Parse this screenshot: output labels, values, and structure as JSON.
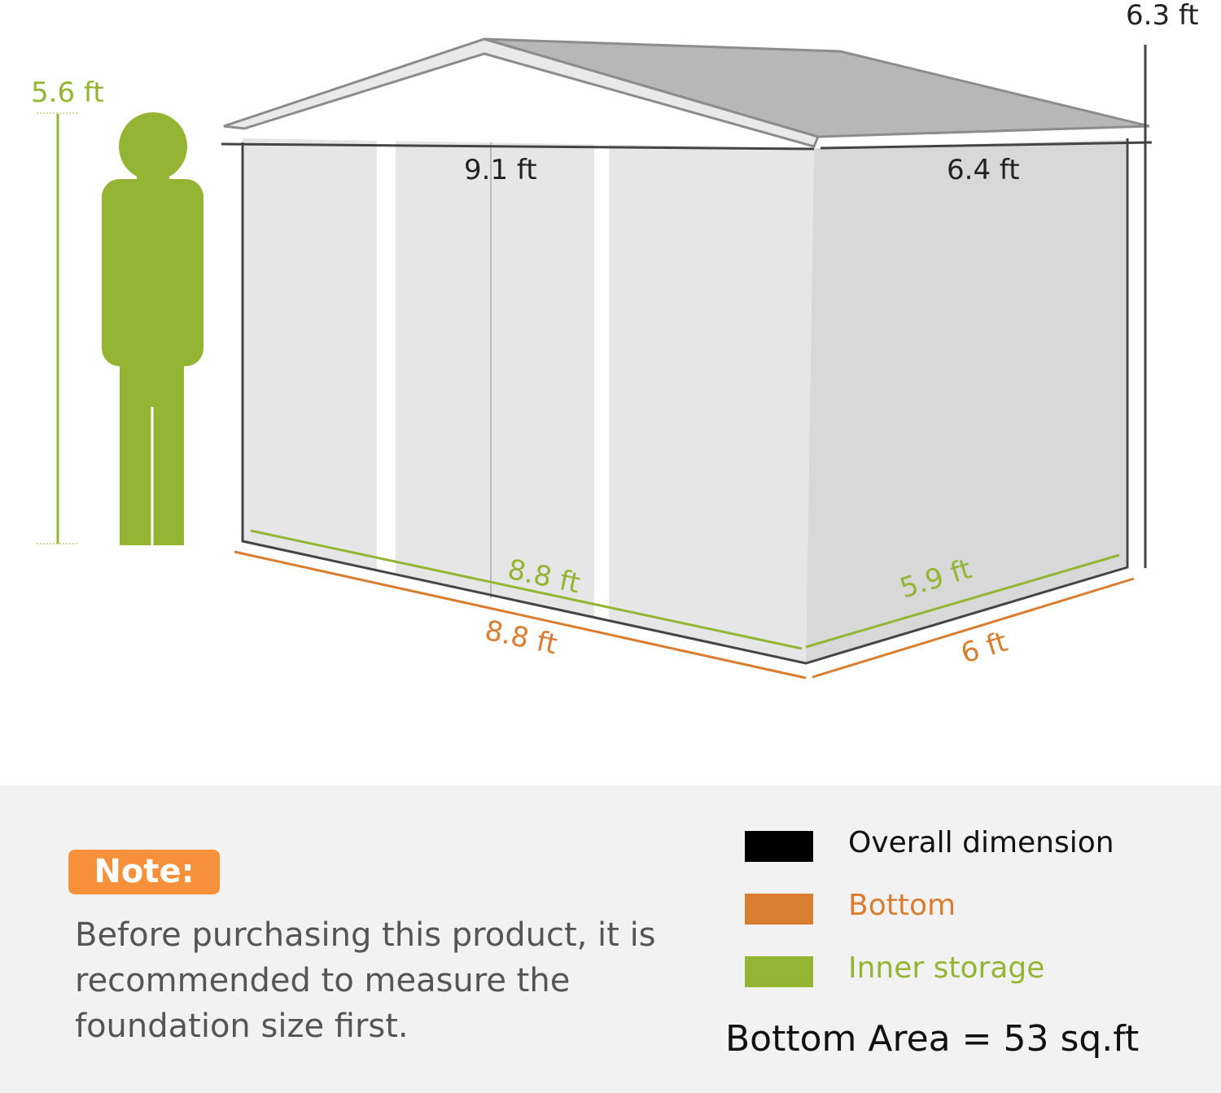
{
  "dimensions": {
    "person_height": "5.6 ft",
    "overall_height": "6.3 ft",
    "overall_width": "9.1 ft",
    "overall_depth": "6.4 ft",
    "bottom_width": "8.8 ft",
    "bottom_depth": "6 ft",
    "inner_width": "8.8 ft",
    "inner_depth": "5.9 ft"
  },
  "colors": {
    "overall": "#000000",
    "bottom": "#d97e30",
    "inner": "#94b533",
    "note_badge": "#f7903a"
  },
  "note": {
    "title": "Note:",
    "text": "Before purchasing this product, it is recommended to measure the foundation size first."
  },
  "legend": [
    {
      "label": "Overall dimension",
      "color": "#000000"
    },
    {
      "label": "Bottom",
      "color": "#d97e30"
    },
    {
      "label": "Inner storage",
      "color": "#94b533"
    }
  ],
  "bottom_area": "Bottom Area = 53 sq.ft"
}
